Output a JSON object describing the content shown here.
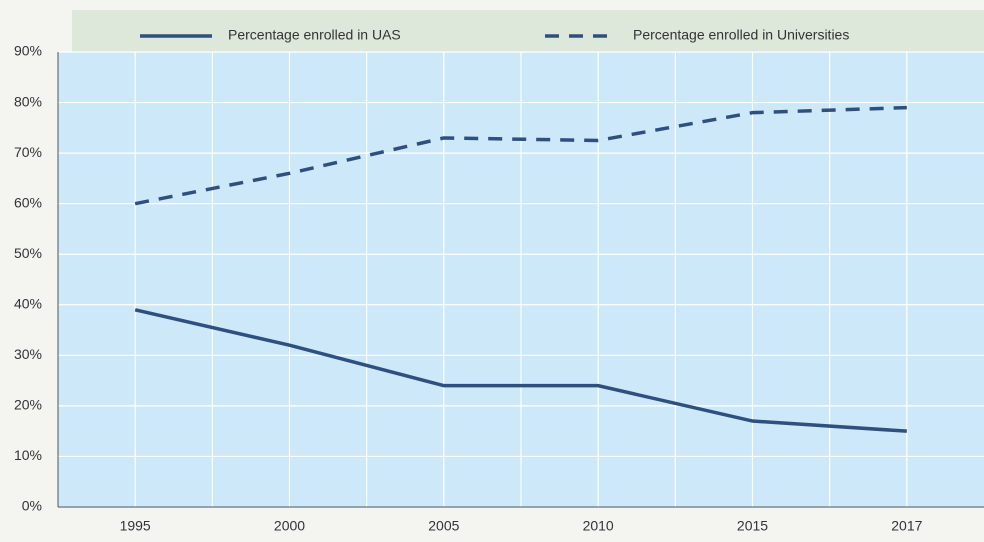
{
  "chart_data": {
    "type": "line",
    "categories": [
      "1995",
      "2000",
      "2005",
      "2010",
      "2015",
      "2017"
    ],
    "series": [
      {
        "name": "Percentage enrolled in UAS",
        "color": "#2f4f7f",
        "dash": false,
        "values": [
          39,
          32,
          24,
          24,
          17,
          15
        ]
      },
      {
        "name": "Percentage enrolled in Universities",
        "color": "#2f4f7f",
        "dash": true,
        "values": [
          60,
          66,
          73,
          72.5,
          78,
          79
        ]
      }
    ],
    "ylim": [
      0,
      90
    ],
    "yticks": [
      {
        "value": 0,
        "label": "0%"
      },
      {
        "value": 10,
        "label": "10%"
      },
      {
        "value": 20,
        "label": "20%"
      },
      {
        "value": 30,
        "label": "30%"
      },
      {
        "value": 40,
        "label": "40%"
      },
      {
        "value": 50,
        "label": "50%"
      },
      {
        "value": 60,
        "label": "60%"
      },
      {
        "value": 70,
        "label": "70%"
      },
      {
        "value": 80,
        "label": "80%"
      },
      {
        "value": 90,
        "label": "90%"
      }
    ],
    "grid": true
  }
}
